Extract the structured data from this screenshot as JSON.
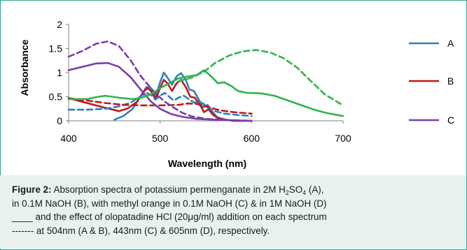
{
  "chart_data": {
    "type": "line",
    "xlabel": "Wavelength (nm)",
    "ylabel": "Absorbance",
    "xlim": [
      400,
      700
    ],
    "ylim": [
      0,
      2
    ],
    "x_ticks": [
      "400",
      "500",
      "600",
      "700"
    ],
    "y_ticks": [
      "0",
      "0.5",
      "1",
      "1.5",
      "2"
    ],
    "grid": false,
    "legend_position": "right",
    "legend": [
      "A",
      "B",
      "C"
    ],
    "series": [
      {
        "name": "A",
        "style": "solid",
        "color": "#2e7fbf",
        "points": [
          [
            450,
            0.02
          ],
          [
            460,
            0.1
          ],
          [
            470,
            0.25
          ],
          [
            480,
            0.55
          ],
          [
            485,
            0.7
          ],
          [
            490,
            0.68
          ],
          [
            495,
            0.5
          ],
          [
            500,
            0.8
          ],
          [
            504,
            1.0
          ],
          [
            508,
            0.9
          ],
          [
            513,
            0.75
          ],
          [
            518,
            0.92
          ],
          [
            523,
            0.99
          ],
          [
            528,
            0.85
          ],
          [
            532,
            0.65
          ],
          [
            537,
            0.62
          ],
          [
            542,
            0.45
          ],
          [
            547,
            0.28
          ],
          [
            552,
            0.33
          ],
          [
            556,
            0.22
          ],
          [
            562,
            0.08
          ],
          [
            570,
            0.03
          ],
          [
            580,
            0.0
          ],
          [
            600,
            0.0
          ]
        ]
      },
      {
        "name": "B",
        "style": "solid",
        "color": "#c0181b",
        "points": [
          [
            400,
            0.47
          ],
          [
            420,
            0.37
          ],
          [
            440,
            0.27
          ],
          [
            455,
            0.2
          ],
          [
            465,
            0.26
          ],
          [
            475,
            0.4
          ],
          [
            482,
            0.6
          ],
          [
            486,
            0.68
          ],
          [
            490,
            0.62
          ],
          [
            495,
            0.45
          ],
          [
            500,
            0.68
          ],
          [
            504,
            0.85
          ],
          [
            508,
            0.78
          ],
          [
            513,
            0.62
          ],
          [
            518,
            0.78
          ],
          [
            523,
            0.85
          ],
          [
            528,
            0.7
          ],
          [
            533,
            0.5
          ],
          [
            538,
            0.48
          ],
          [
            543,
            0.35
          ],
          [
            548,
            0.18
          ],
          [
            553,
            0.24
          ],
          [
            558,
            0.12
          ],
          [
            565,
            0.04
          ],
          [
            580,
            0.0
          ],
          [
            600,
            0.0
          ]
        ]
      },
      {
        "name": "A + olopatadine HCl",
        "style": "dashed",
        "color": "#2e7fbf",
        "points": [
          [
            400,
            0.23
          ],
          [
            420,
            0.23
          ],
          [
            440,
            0.25
          ],
          [
            455,
            0.3
          ],
          [
            468,
            0.38
          ],
          [
            478,
            0.5
          ],
          [
            485,
            0.58
          ],
          [
            490,
            0.54
          ],
          [
            495,
            0.44
          ],
          [
            500,
            0.52
          ],
          [
            505,
            0.58
          ],
          [
            510,
            0.5
          ],
          [
            515,
            0.42
          ],
          [
            520,
            0.48
          ],
          [
            526,
            0.52
          ],
          [
            532,
            0.44
          ],
          [
            537,
            0.38
          ],
          [
            542,
            0.4
          ],
          [
            547,
            0.36
          ],
          [
            552,
            0.28
          ],
          [
            560,
            0.2
          ],
          [
            570,
            0.15
          ],
          [
            585,
            0.12
          ],
          [
            600,
            0.1
          ]
        ]
      },
      {
        "name": "B + olopatadine HCl",
        "style": "dashed",
        "color": "#c0181b",
        "points": [
          [
            400,
            0.47
          ],
          [
            420,
            0.42
          ],
          [
            440,
            0.37
          ],
          [
            460,
            0.33
          ],
          [
            480,
            0.32
          ],
          [
            500,
            0.32
          ],
          [
            520,
            0.33
          ],
          [
            530,
            0.36
          ],
          [
            540,
            0.35
          ],
          [
            550,
            0.3
          ],
          [
            565,
            0.22
          ],
          [
            580,
            0.18
          ],
          [
            600,
            0.15
          ]
        ]
      },
      {
        "name": "C",
        "style": "solid",
        "color": "#7a3ea8",
        "points": [
          [
            400,
            1.05
          ],
          [
            415,
            1.12
          ],
          [
            430,
            1.19
          ],
          [
            443,
            1.2
          ],
          [
            455,
            1.12
          ],
          [
            468,
            0.9
          ],
          [
            480,
            0.62
          ],
          [
            490,
            0.4
          ],
          [
            500,
            0.25
          ],
          [
            512,
            0.14
          ],
          [
            525,
            0.08
          ],
          [
            540,
            0.04
          ],
          [
            560,
            0.02
          ],
          [
            580,
            0.01
          ],
          [
            600,
            0.0
          ]
        ]
      },
      {
        "name": "C + olopatadine HCl",
        "style": "dashed",
        "color": "#7a3ea8",
        "points": [
          [
            400,
            1.33
          ],
          [
            415,
            1.45
          ],
          [
            430,
            1.6
          ],
          [
            443,
            1.65
          ],
          [
            455,
            1.55
          ],
          [
            468,
            1.25
          ],
          [
            478,
            0.95
          ],
          [
            488,
            0.72
          ],
          [
            496,
            0.55
          ],
          [
            505,
            0.4
          ],
          [
            515,
            0.27
          ],
          [
            525,
            0.16
          ],
          [
            535,
            0.09
          ],
          [
            550,
            0.04
          ],
          [
            570,
            0.02
          ],
          [
            600,
            0.0
          ]
        ]
      },
      {
        "name": "D",
        "style": "solid",
        "color": "#2fb34f",
        "points": [
          [
            400,
            0.45
          ],
          [
            420,
            0.45
          ],
          [
            430,
            0.49
          ],
          [
            440,
            0.52
          ],
          [
            455,
            0.48
          ],
          [
            470,
            0.45
          ],
          [
            480,
            0.48
          ],
          [
            490,
            0.55
          ],
          [
            500,
            0.68
          ],
          [
            510,
            0.78
          ],
          [
            520,
            0.88
          ],
          [
            530,
            0.92
          ],
          [
            540,
            0.95
          ],
          [
            548,
            1.05
          ],
          [
            556,
            0.92
          ],
          [
            563,
            0.78
          ],
          [
            570,
            0.8
          ],
          [
            578,
            0.72
          ],
          [
            585,
            0.62
          ],
          [
            595,
            0.58
          ],
          [
            610,
            0.57
          ],
          [
            625,
            0.52
          ],
          [
            640,
            0.42
          ],
          [
            655,
            0.32
          ],
          [
            670,
            0.22
          ],
          [
            685,
            0.15
          ],
          [
            700,
            0.1
          ]
        ]
      },
      {
        "name": "D + olopatadine HCl",
        "style": "dashed",
        "color": "#2fb34f",
        "points": [
          [
            520,
            0.82
          ],
          [
            535,
            0.9
          ],
          [
            548,
            1.02
          ],
          [
            560,
            1.2
          ],
          [
            575,
            1.35
          ],
          [
            590,
            1.44
          ],
          [
            605,
            1.47
          ],
          [
            620,
            1.42
          ],
          [
            635,
            1.3
          ],
          [
            650,
            1.1
          ],
          [
            665,
            0.82
          ],
          [
            680,
            0.55
          ],
          [
            693,
            0.4
          ],
          [
            700,
            0.32
          ]
        ]
      }
    ]
  },
  "caption": {
    "label": "Figure 2:",
    "line1_pre": "Absorption spectra of potassium permenganate in 2M H",
    "sub1": "2",
    "line1_mid": "SO",
    "sub2": "4",
    "line1_post": " (A),",
    "line2": "in 0.1M NaOH (B), with methyl orange in 0.1M NaOH (C) & in 1M NaOH (D)",
    "line3": "____ and the effect of olopatadine HCl (20μg/ml) addition on each spectrum",
    "line4": "------- at 504nm (A & B), 443nm (C) & 605nm (D), respectively."
  },
  "colors": {
    "frame_border": "#2aa58a",
    "caption_background": "#e8f1ee",
    "axis": "#7f7f7f"
  }
}
